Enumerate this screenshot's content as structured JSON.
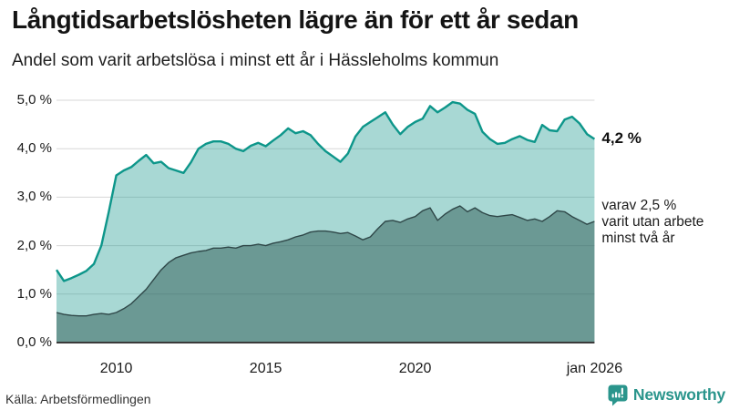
{
  "header": {
    "title": "Långtidsarbetslösheten lägre än för ett år sedan",
    "subtitle": "Andel som varit arbetslösa i minst ett år i Hässleholms kommun"
  },
  "footer": {
    "source": "Källa: Arbetsförmedlingen",
    "brand": "Newsworthy",
    "brand_color": "#2a958c"
  },
  "chart_data": {
    "type": "area",
    "title": "Långtidsarbetslösheten lägre än för ett år sedan",
    "subtitle": "Andel som varit arbetslösa i minst ett år i Hässleholms kommun",
    "x_start": 2008.0,
    "x_step": 0.25,
    "x_end": 2026.0,
    "xlim": [
      2008.0,
      2026.0
    ],
    "ylim": [
      0,
      5
    ],
    "grid": true,
    "colors": {
      "line_primary": "#0d968a",
      "fill_primary": "rgba(18,150,138,0.37)",
      "line_secondary": "#2f4748",
      "fill_secondary": "rgba(42,84,80,0.48)",
      "gridline": "#d7d7d7",
      "axis": "#3a3a3a"
    },
    "y_ticks": [
      {
        "v": 5,
        "label": "5,0 %"
      },
      {
        "v": 4,
        "label": "4,0 %"
      },
      {
        "v": 3,
        "label": "3,0 %"
      },
      {
        "v": 2,
        "label": "2,0 %"
      },
      {
        "v": 1,
        "label": "1,0 %"
      },
      {
        "v": 0,
        "label": "0,0 %"
      }
    ],
    "x_ticks": [
      {
        "t": 2010.0,
        "label": "2010"
      },
      {
        "t": 2015.0,
        "label": "2015"
      },
      {
        "t": 2020.0,
        "label": "2020"
      },
      {
        "t": 2026.0,
        "label": "jan 2026"
      }
    ],
    "series": [
      {
        "name": "Andel som varit arbetslösa i minst ett år",
        "values": [
          1.5,
          1.27,
          1.33,
          1.4,
          1.48,
          1.62,
          2.0,
          2.7,
          3.45,
          3.55,
          3.62,
          3.75,
          3.87,
          3.7,
          3.73,
          3.6,
          3.55,
          3.5,
          3.72,
          4.0,
          4.1,
          4.15,
          4.15,
          4.1,
          4.0,
          3.95,
          4.06,
          4.12,
          4.05,
          4.17,
          4.28,
          4.42,
          4.32,
          4.36,
          4.28,
          4.1,
          3.95,
          3.84,
          3.73,
          3.9,
          4.25,
          4.45,
          4.55,
          4.65,
          4.75,
          4.5,
          4.3,
          4.45,
          4.55,
          4.62,
          4.88,
          4.75,
          4.85,
          4.96,
          4.93,
          4.8,
          4.72,
          4.35,
          4.2,
          4.1,
          4.12,
          4.2,
          4.26,
          4.18,
          4.14,
          4.49,
          4.38,
          4.36,
          4.6,
          4.66,
          4.52,
          4.3,
          4.2
        ]
      },
      {
        "name": "varav utan arbete minst två år",
        "values": [
          0.62,
          0.58,
          0.56,
          0.55,
          0.55,
          0.58,
          0.6,
          0.58,
          0.62,
          0.7,
          0.8,
          0.95,
          1.1,
          1.3,
          1.5,
          1.65,
          1.75,
          1.8,
          1.85,
          1.88,
          1.9,
          1.95,
          1.95,
          1.97,
          1.95,
          2.0,
          2.0,
          2.03,
          2.0,
          2.05,
          2.08,
          2.12,
          2.18,
          2.22,
          2.28,
          2.3,
          2.3,
          2.28,
          2.25,
          2.27,
          2.2,
          2.12,
          2.18,
          2.35,
          2.5,
          2.52,
          2.48,
          2.55,
          2.6,
          2.72,
          2.78,
          2.52,
          2.65,
          2.75,
          2.82,
          2.7,
          2.78,
          2.68,
          2.62,
          2.6,
          2.62,
          2.64,
          2.58,
          2.52,
          2.55,
          2.5,
          2.6,
          2.72,
          2.7,
          2.6,
          2.52,
          2.44,
          2.5
        ]
      }
    ],
    "annotations": [
      {
        "id": "last-value",
        "text": "4,2 %",
        "t": 2026.0,
        "v": 4.2
      },
      {
        "id": "secondary-value",
        "lines": [
          "varav 2,5 %",
          "varit utan arbete",
          "minst två år"
        ],
        "t": 2026.0,
        "v": 2.5
      }
    ]
  }
}
